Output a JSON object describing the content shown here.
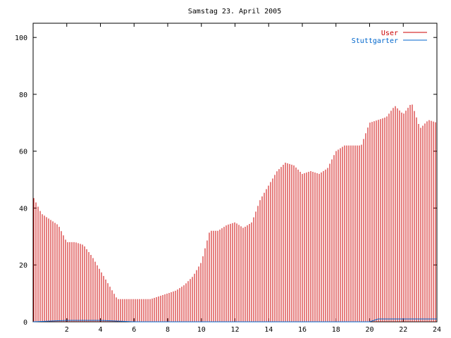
{
  "chart_data": {
    "type": "bar",
    "title": "Samstag 23. April 2005",
    "xlabel": "",
    "ylabel": "",
    "xlim": [
      0,
      24
    ],
    "ylim": [
      0,
      105
    ],
    "x_ticks": [
      "2",
      "4",
      "6",
      "8",
      "10",
      "12",
      "14",
      "16",
      "18",
      "20",
      "22",
      "24"
    ],
    "y_ticks": [
      "0",
      "20",
      "40",
      "60",
      "80",
      "100"
    ],
    "grid": false,
    "legend_position": "top-right",
    "series": [
      {
        "name": "User",
        "color": "#cc0000",
        "style": "impulses",
        "points": [
          [
            0.0,
            44
          ],
          [
            0.5,
            38
          ],
          [
            1.0,
            36
          ],
          [
            1.5,
            34
          ],
          [
            2.0,
            28
          ],
          [
            2.5,
            28
          ],
          [
            3.0,
            27
          ],
          [
            3.5,
            23
          ],
          [
            4.0,
            18
          ],
          [
            4.5,
            13
          ],
          [
            5.0,
            8
          ],
          [
            5.5,
            8
          ],
          [
            6.0,
            8
          ],
          [
            6.5,
            8
          ],
          [
            7.0,
            8
          ],
          [
            7.5,
            9
          ],
          [
            8.0,
            10
          ],
          [
            8.5,
            11
          ],
          [
            9.0,
            13
          ],
          [
            9.5,
            16
          ],
          [
            10.0,
            21
          ],
          [
            10.5,
            32
          ],
          [
            11.0,
            32
          ],
          [
            11.5,
            34
          ],
          [
            12.0,
            35
          ],
          [
            12.5,
            33
          ],
          [
            13.0,
            35
          ],
          [
            13.5,
            43
          ],
          [
            14.0,
            48
          ],
          [
            14.5,
            53
          ],
          [
            15.0,
            56
          ],
          [
            15.5,
            55
          ],
          [
            16.0,
            52
          ],
          [
            16.5,
            53
          ],
          [
            17.0,
            52
          ],
          [
            17.5,
            54
          ],
          [
            18.0,
            60
          ],
          [
            18.5,
            62
          ],
          [
            19.0,
            62
          ],
          [
            19.5,
            62
          ],
          [
            20.0,
            70
          ],
          [
            20.5,
            71
          ],
          [
            21.0,
            72
          ],
          [
            21.5,
            76
          ],
          [
            22.0,
            73
          ],
          [
            22.5,
            77
          ],
          [
            23.0,
            68
          ],
          [
            23.5,
            71
          ],
          [
            24.0,
            70
          ]
        ]
      },
      {
        "name": "Stuttgarter",
        "color": "#0066cc",
        "style": "impulses",
        "points": [
          [
            0.0,
            0
          ],
          [
            2.0,
            0.5
          ],
          [
            4.0,
            0.5
          ],
          [
            6.0,
            0
          ],
          [
            8.0,
            0
          ],
          [
            10.0,
            0
          ],
          [
            12.0,
            0
          ],
          [
            14.0,
            0
          ],
          [
            16.0,
            0
          ],
          [
            18.0,
            0
          ],
          [
            20.0,
            0
          ],
          [
            20.5,
            1
          ],
          [
            22.0,
            1
          ],
          [
            24.0,
            1
          ]
        ]
      }
    ]
  }
}
